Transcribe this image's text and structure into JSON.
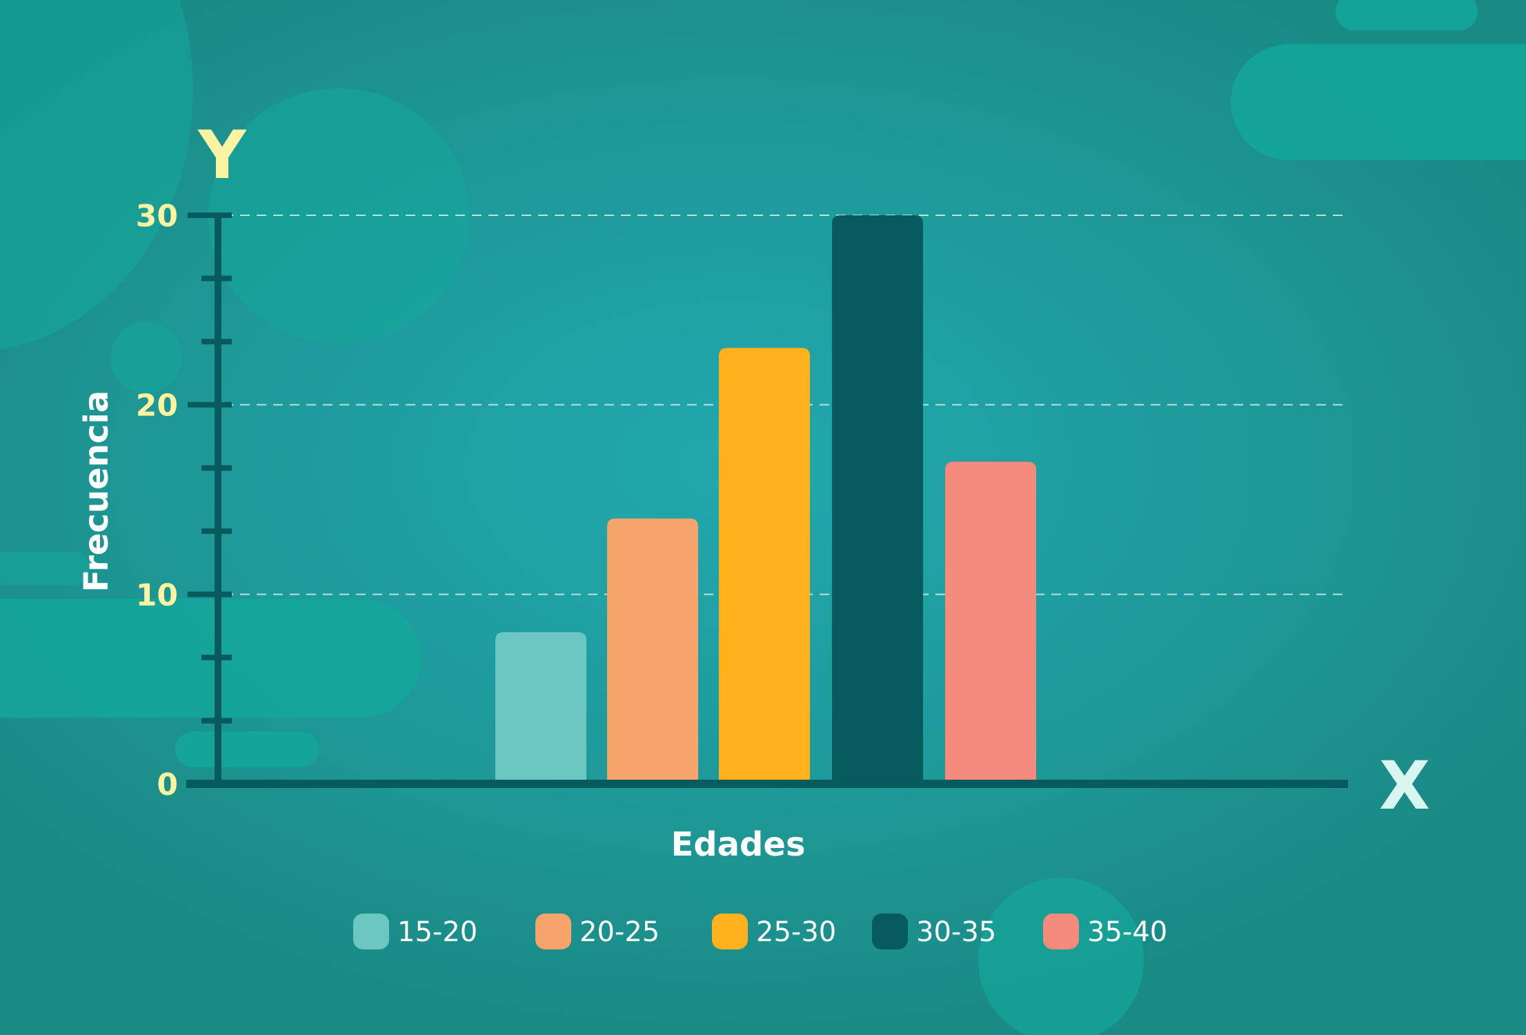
{
  "colors": {
    "axis": "#075a5e",
    "tick_text": "#fdf3a0",
    "label_text": "#ffffff",
    "x_letter": "#d9f5ef",
    "grid": "#c9ece6"
  },
  "chart_data": {
    "type": "bar",
    "xlabel": "Edades",
    "ylabel": "Frecuencia",
    "x_axis_letter": "X",
    "y_axis_letter": "Y",
    "ylim": [
      0,
      30
    ],
    "yticks": [
      "0",
      "10",
      "20",
      "30"
    ],
    "grid": true,
    "legend_position": "bottom",
    "categories": [
      "15-20",
      "20-25",
      "25-30",
      "30-35",
      "35-40"
    ],
    "values": [
      8,
      14,
      23,
      30,
      17
    ],
    "bar_colors": [
      "#6cc7c1",
      "#f7a46a",
      "#ffb21c",
      "#075a5e",
      "#f38a7b"
    ]
  }
}
